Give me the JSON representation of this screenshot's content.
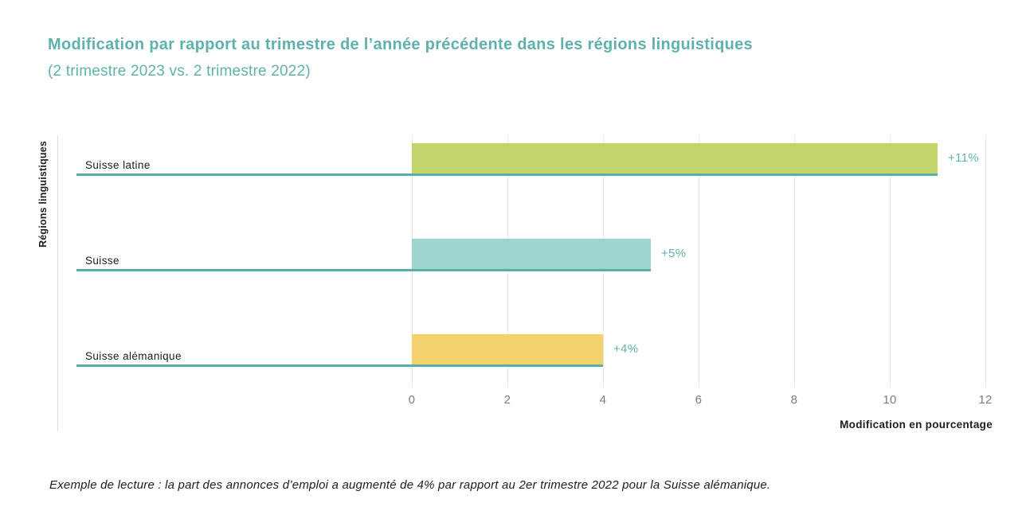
{
  "header": {
    "title": "Modification par rapport au trimestre de l’année précédente dans les régions linguistiques",
    "subtitle": "(2 trimestre 2023 vs. 2 trimestre 2022)",
    "title_color": "#5fb2ac"
  },
  "chart_data": {
    "type": "bar",
    "orientation": "horizontal",
    "title": "Modification par rapport au trimestre de l’année précédente dans les régions linguistiques",
    "subtitle": "(2 trimestre 2023 vs. 2 trimestre 2022)",
    "categories": [
      "Suisse latine",
      "Suisse",
      "Suisse alémanique"
    ],
    "values": [
      11,
      5,
      4
    ],
    "value_labels": [
      "+11%",
      "+5%",
      "+4%"
    ],
    "bar_colors": [
      "#c3d46b",
      "#9cd4ce",
      "#f3d26c"
    ],
    "underline_color": "#58aea8",
    "value_label_color": "#5fb2ac",
    "xlabel": "Modification en pourcentage",
    "ylabel": "Régions linguistiques",
    "xlim": [
      0,
      12
    ],
    "xticks": [
      0,
      2,
      4,
      6,
      8,
      10,
      12
    ],
    "grid": true,
    "legend": false
  },
  "footnote": "Exemple de lecture : la part des annonces d’emploi a augmenté de 4% par rapport au 2er trimestre 2022 pour la Suisse alémanique."
}
